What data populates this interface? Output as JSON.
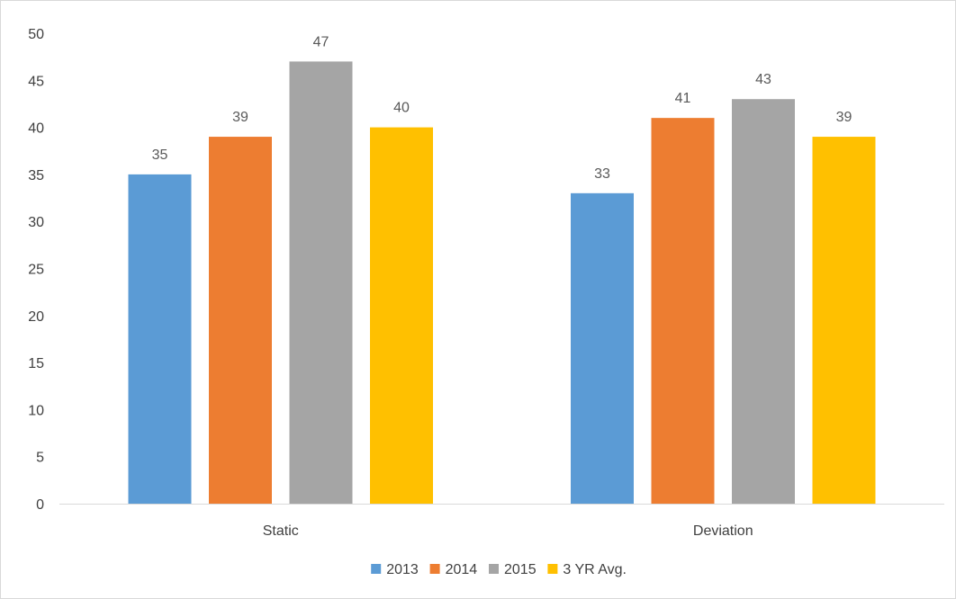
{
  "chart_data": {
    "type": "bar",
    "categories": [
      "Static",
      "Deviation"
    ],
    "series": [
      {
        "name": "2013",
        "values": [
          35,
          33
        ],
        "color": "#5b9bd5"
      },
      {
        "name": "2014",
        "values": [
          39,
          41
        ],
        "color": "#ed7d31"
      },
      {
        "name": "2015",
        "values": [
          47,
          43
        ],
        "color": "#a5a5a5"
      },
      {
        "name": "3 YR Avg.",
        "values": [
          40,
          39
        ],
        "color": "#ffc000"
      }
    ],
    "ylim": [
      0,
      50
    ],
    "yticks": [
      0,
      5,
      10,
      15,
      20,
      25,
      30,
      35,
      40,
      45,
      50
    ],
    "title": "",
    "xlabel": "",
    "ylabel": "",
    "grid": false,
    "data_labels": true,
    "legend": "bottom"
  }
}
